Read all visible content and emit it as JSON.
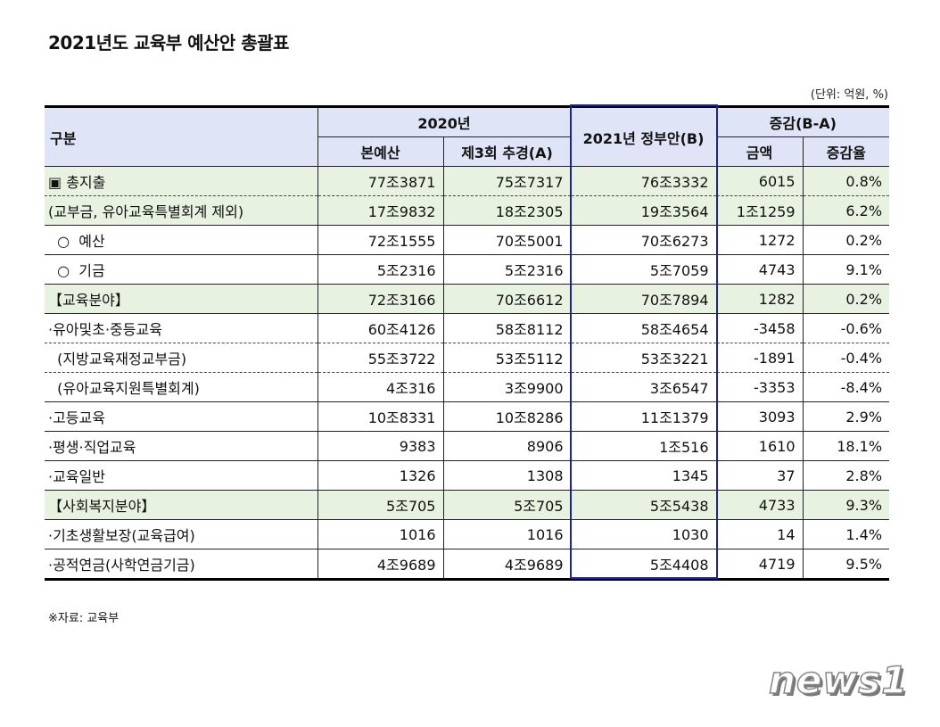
{
  "title": "2021년도 교육부 예산안 총괄표",
  "unit": "(단위: 억원, %)",
  "header": {
    "category": "구분",
    "y2020": "2020년",
    "main_budget": "본예산",
    "supp3": "제3회 추경(A)",
    "gov2021": "2021년 정부안(B)",
    "change": "증감(B-A)",
    "amount": "금액",
    "rate": "증감율"
  },
  "rows": [
    {
      "label": "▣ 총지출",
      "main": "77조3871",
      "supp": "75조7317",
      "gov": "76조3332",
      "amount": "6015",
      "rate": "0.8%",
      "highlight": true,
      "dashed": true
    },
    {
      "label": "(교부금, 유아교육특별회계 제외)",
      "main": "17조9832",
      "supp": "18조2305",
      "gov": "19조3564",
      "amount": "1조1259",
      "rate": "6.2%",
      "highlight": true
    },
    {
      "label": "  ○  예산",
      "main": "72조1555",
      "supp": "70조5001",
      "gov": "70조6273",
      "amount": "1272",
      "rate": "0.2%"
    },
    {
      "label": "  ○  기금",
      "main": "5조2316",
      "supp": "5조2316",
      "gov": "5조7059",
      "amount": "4743",
      "rate": "9.1%"
    },
    {
      "label": "【교육분야】",
      "main": "72조3166",
      "supp": "70조6612",
      "gov": "70조7894",
      "amount": "1282",
      "rate": "0.2%",
      "highlight": true
    },
    {
      "label": "·유아및초·중등교육",
      "main": "60조4126",
      "supp": "58조8112",
      "gov": "58조4654",
      "amount": "-3458",
      "rate": "-0.6%",
      "dashed": true
    },
    {
      "label": "  (지방교육재정교부금)",
      "main": "55조3722",
      "supp": "53조5112",
      "gov": "53조3221",
      "amount": "-1891",
      "rate": "-0.4%",
      "dashed": true
    },
    {
      "label": "  (유아교육지원특별회계)",
      "main": "4조316",
      "supp": "3조9900",
      "gov": "3조6547",
      "amount": "-3353",
      "rate": "-8.4%"
    },
    {
      "label": "·고등교육",
      "main": "10조8331",
      "supp": "10조8286",
      "gov": "11조1379",
      "amount": "3093",
      "rate": "2.9%"
    },
    {
      "label": "·평생·직업교육",
      "main": "9383",
      "supp": "8906",
      "gov": "1조516",
      "amount": "1610",
      "rate": "18.1%"
    },
    {
      "label": "·교육일반",
      "main": "1326",
      "supp": "1308",
      "gov": "1345",
      "amount": "37",
      "rate": "2.8%"
    },
    {
      "label": "【사회복지분야】",
      "main": "5조705",
      "supp": "5조705",
      "gov": "5조5438",
      "amount": "4733",
      "rate": "9.3%",
      "highlight": true
    },
    {
      "label": "·기초생활보장(교육급여)",
      "main": "1016",
      "supp": "1016",
      "gov": "1030",
      "amount": "14",
      "rate": "1.4%"
    },
    {
      "label": "·공적연금(사학연금기금)",
      "main": "4조9689",
      "supp": "4조9689",
      "gov": "5조4408",
      "amount": "4719",
      "rate": "9.5%"
    }
  ],
  "source": "※자료: 교육부",
  "logo": "news1",
  "colors": {
    "header_bg": "#dfe5f6",
    "highlight_bg": "#e7f3e0",
    "highlight_column_border": "#1b22a8"
  }
}
